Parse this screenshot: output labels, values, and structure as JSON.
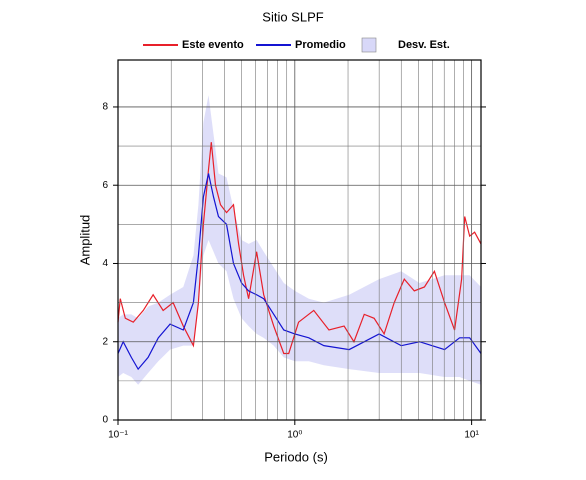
{
  "chart_data": {
    "type": "line",
    "title": "Sitio SLPF",
    "x_label": "Periodo (s)",
    "y_label": "Amplitud",
    "xscale": "log",
    "xlim": [
      0.1,
      11.3
    ],
    "ylim": [
      0,
      9.2
    ],
    "xticks": [
      {
        "value": 0.1,
        "label": "10⁻¹"
      },
      {
        "value": 1,
        "label": "10⁰"
      },
      {
        "value": 10,
        "label": "10¹"
      }
    ],
    "yticks": [
      0,
      2,
      4,
      6,
      8
    ],
    "grid": true,
    "legend": "top",
    "series": [
      {
        "name": "Este evento",
        "color": "#e8202a",
        "x": [
          0.1,
          0.103,
          0.11,
          0.122,
          0.139,
          0.158,
          0.18,
          0.205,
          0.234,
          0.267,
          0.285,
          0.304,
          0.325,
          0.337,
          0.356,
          0.38,
          0.411,
          0.45,
          0.481,
          0.513,
          0.548,
          0.608,
          0.667,
          0.76,
          0.866,
          0.924,
          1.05,
          1.28,
          1.56,
          1.9,
          2.16,
          2.47,
          2.81,
          3.2,
          3.65,
          4.16,
          4.74,
          5.41,
          6.16,
          7.03,
          8.01,
          8.78,
          9.14,
          9.75,
          10.4,
          11.3
        ],
        "values": [
          2.5,
          3.1,
          2.6,
          2.5,
          2.8,
          3.2,
          2.8,
          3.0,
          2.4,
          1.9,
          3.0,
          5.0,
          6.4,
          7.1,
          6.0,
          5.5,
          5.3,
          5.5,
          4.5,
          3.7,
          3.1,
          4.3,
          3.2,
          2.4,
          1.7,
          1.7,
          2.5,
          2.8,
          2.3,
          2.4,
          2.0,
          2.7,
          2.6,
          2.2,
          3.0,
          3.6,
          3.3,
          3.4,
          3.8,
          3.0,
          2.3,
          3.6,
          5.2,
          4.7,
          4.8,
          4.5
        ]
      },
      {
        "name": "Promedio",
        "color": "#1414d2",
        "x": [
          0.1,
          0.107,
          0.119,
          0.13,
          0.148,
          0.169,
          0.197,
          0.234,
          0.267,
          0.285,
          0.304,
          0.325,
          0.347,
          0.37,
          0.411,
          0.45,
          0.5,
          0.548,
          0.608,
          0.667,
          0.76,
          0.866,
          1.0,
          1.2,
          1.46,
          2.03,
          3.0,
          4.0,
          5.07,
          7.03,
          8.55,
          9.75,
          11.3
        ],
        "values": [
          1.7,
          2.0,
          1.6,
          1.3,
          1.6,
          2.1,
          2.45,
          2.3,
          3.0,
          4.2,
          5.7,
          6.3,
          5.7,
          5.2,
          5.0,
          4.0,
          3.5,
          3.3,
          3.2,
          3.1,
          2.7,
          2.3,
          2.2,
          2.1,
          1.9,
          1.8,
          2.2,
          1.9,
          2.0,
          1.8,
          2.1,
          2.1,
          1.7
        ]
      },
      {
        "name": "Desv. Est.",
        "color": "#d8d8f8",
        "kind": "band",
        "x": [
          0.1,
          0.107,
          0.119,
          0.13,
          0.148,
          0.169,
          0.197,
          0.234,
          0.267,
          0.285,
          0.304,
          0.325,
          0.347,
          0.37,
          0.411,
          0.45,
          0.5,
          0.548,
          0.608,
          0.667,
          0.76,
          0.866,
          1.0,
          1.2,
          1.46,
          2.03,
          3.0,
          4.0,
          5.07,
          7.03,
          8.55,
          9.75,
          11.3
        ],
        "upper": [
          2.6,
          2.7,
          2.7,
          2.6,
          2.9,
          3.0,
          3.2,
          3.4,
          4.2,
          5.5,
          7.6,
          8.3,
          7.3,
          6.3,
          6.2,
          5.4,
          4.6,
          4.5,
          4.6,
          4.3,
          3.9,
          3.5,
          3.3,
          3.1,
          3.0,
          3.2,
          3.6,
          3.8,
          3.5,
          3.7,
          3.7,
          3.7,
          3.4
        ],
        "lower": [
          1.1,
          1.2,
          1.1,
          0.9,
          1.2,
          1.5,
          1.8,
          1.9,
          1.9,
          3.0,
          4.2,
          4.6,
          4.3,
          4.0,
          3.8,
          3.1,
          2.6,
          2.4,
          2.2,
          2.1,
          1.9,
          1.6,
          1.5,
          1.5,
          1.4,
          1.3,
          1.2,
          1.2,
          1.2,
          1.1,
          1.1,
          1.0,
          0.9
        ]
      }
    ]
  }
}
